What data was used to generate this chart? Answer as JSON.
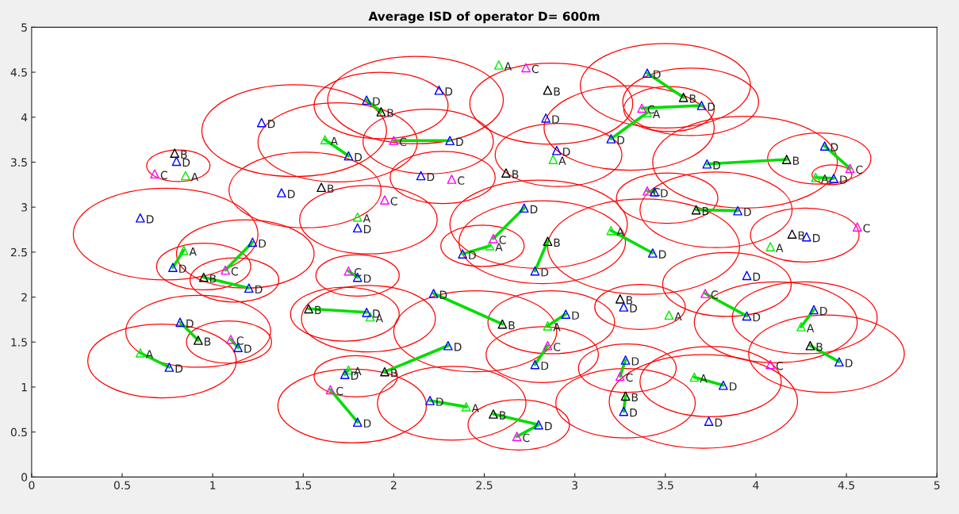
{
  "chart_data": {
    "type": "scatter",
    "title": "Average ISD of operator D= 600m",
    "xlim": [
      0,
      5
    ],
    "ylim": [
      0,
      5
    ],
    "xticks": [
      0,
      0.5,
      1,
      1.5,
      2,
      2.5,
      3,
      3.5,
      4,
      4.5,
      5
    ],
    "yticks": [
      0,
      0.5,
      1,
      1.5,
      2,
      2.5,
      3,
      3.5,
      4,
      4.5,
      5
    ],
    "grid": false,
    "legend": false,
    "marker": "triangle",
    "series": [
      {
        "type": "line",
        "marker": "none",
        "color": "#00dd00",
        "x": [
          1.85,
          1.93
        ],
        "values": [
          4.19,
          4.06
        ]
      },
      {
        "type": "line",
        "marker": "none",
        "color": "#00dd00",
        "x": [
          2.0,
          2.31
        ],
        "values": [
          3.74,
          3.74
        ]
      },
      {
        "type": "line",
        "marker": "none",
        "color": "#00dd00",
        "x": [
          1.62,
          1.75
        ],
        "values": [
          3.75,
          3.57
        ]
      },
      {
        "type": "line",
        "marker": "none",
        "color": "#00dd00",
        "x": [
          3.4,
          3.6
        ],
        "values": [
          4.49,
          4.22
        ]
      },
      {
        "type": "line",
        "marker": "none",
        "color": "#00dd00",
        "x": [
          3.37,
          3.7
        ],
        "values": [
          4.1,
          4.13
        ]
      },
      {
        "type": "line",
        "marker": "none",
        "color": "#00dd00",
        "x": [
          3.4,
          3.2
        ],
        "values": [
          4.05,
          3.76
        ]
      },
      {
        "type": "line",
        "marker": "none",
        "color": "#00dd00",
        "x": [
          3.73,
          4.17
        ],
        "values": [
          3.48,
          3.53
        ]
      },
      {
        "type": "line",
        "marker": "none",
        "color": "#00dd00",
        "x": [
          4.38,
          4.52
        ],
        "values": [
          3.68,
          3.43
        ]
      },
      {
        "type": "line",
        "marker": "none",
        "color": "#00dd00",
        "x": [
          4.33,
          4.43
        ],
        "values": [
          3.33,
          3.32
        ]
      },
      {
        "type": "line",
        "marker": "none",
        "color": "#00dd00",
        "x": [
          3.4,
          3.44
        ],
        "values": [
          3.18,
          3.17
        ]
      },
      {
        "type": "line",
        "marker": "none",
        "color": "#00dd00",
        "x": [
          3.67,
          3.9
        ],
        "values": [
          2.97,
          2.96
        ]
      },
      {
        "type": "line",
        "marker": "none",
        "color": "#00dd00",
        "x": [
          2.72,
          2.55
        ],
        "values": [
          2.99,
          2.65
        ]
      },
      {
        "type": "line",
        "marker": "none",
        "color": "#00dd00",
        "x": [
          2.53,
          2.38
        ],
        "values": [
          2.57,
          2.48
        ]
      },
      {
        "type": "line",
        "marker": "none",
        "color": "#00dd00",
        "x": [
          2.85,
          2.78
        ],
        "values": [
          2.62,
          2.29
        ]
      },
      {
        "type": "line",
        "marker": "none",
        "color": "#00dd00",
        "x": [
          3.2,
          3.43
        ],
        "values": [
          2.74,
          2.49
        ]
      },
      {
        "type": "line",
        "marker": "none",
        "color": "#00dd00",
        "x": [
          0.84,
          0.78
        ],
        "values": [
          2.52,
          2.33
        ]
      },
      {
        "type": "line",
        "marker": "none",
        "color": "#00dd00",
        "x": [
          1.22,
          1.07
        ],
        "values": [
          2.61,
          2.3
        ]
      },
      {
        "type": "line",
        "marker": "none",
        "color": "#00dd00",
        "x": [
          0.95,
          1.2
        ],
        "values": [
          2.22,
          2.1
        ]
      },
      {
        "type": "line",
        "marker": "none",
        "color": "#00dd00",
        "x": [
          1.75,
          1.8
        ],
        "values": [
          2.29,
          2.22
        ]
      },
      {
        "type": "line",
        "marker": "none",
        "color": "#00dd00",
        "x": [
          1.53,
          1.85
        ],
        "values": [
          1.87,
          1.83
        ]
      },
      {
        "type": "line",
        "marker": "none",
        "color": "#00dd00",
        "x": [
          2.22,
          2.6
        ],
        "values": [
          2.04,
          1.7
        ]
      },
      {
        "type": "line",
        "marker": "none",
        "color": "#00dd00",
        "x": [
          2.85,
          2.95
        ],
        "values": [
          1.68,
          1.81
        ]
      },
      {
        "type": "line",
        "marker": "none",
        "color": "#00dd00",
        "x": [
          3.72,
          3.95
        ],
        "values": [
          2.04,
          1.79
        ]
      },
      {
        "type": "line",
        "marker": "none",
        "color": "#00dd00",
        "x": [
          4.25,
          4.32
        ],
        "values": [
          1.67,
          1.86
        ]
      },
      {
        "type": "line",
        "marker": "none",
        "color": "#00dd00",
        "x": [
          0.82,
          0.92
        ],
        "values": [
          1.72,
          1.52
        ]
      },
      {
        "type": "line",
        "marker": "none",
        "color": "#00dd00",
        "x": [
          1.1,
          1.14
        ],
        "values": [
          1.53,
          1.44
        ]
      },
      {
        "type": "line",
        "marker": "none",
        "color": "#00dd00",
        "x": [
          0.6,
          0.76
        ],
        "values": [
          1.38,
          1.22
        ]
      },
      {
        "type": "line",
        "marker": "none",
        "color": "#00dd00",
        "x": [
          1.95,
          2.3
        ],
        "values": [
          1.17,
          1.46
        ]
      },
      {
        "type": "line",
        "marker": "none",
        "color": "#00dd00",
        "x": [
          2.78,
          2.85
        ],
        "values": [
          1.25,
          1.46
        ]
      },
      {
        "type": "line",
        "marker": "none",
        "color": "#00dd00",
        "x": [
          3.28,
          3.25
        ],
        "values": [
          1.3,
          1.12
        ]
      },
      {
        "type": "line",
        "marker": "none",
        "color": "#00dd00",
        "x": [
          4.3,
          4.46
        ],
        "values": [
          1.46,
          1.28
        ]
      },
      {
        "type": "line",
        "marker": "none",
        "color": "#00dd00",
        "x": [
          1.75,
          1.73
        ],
        "values": [
          1.19,
          1.14
        ]
      },
      {
        "type": "line",
        "marker": "none",
        "color": "#00dd00",
        "x": [
          1.65,
          1.8
        ],
        "values": [
          0.97,
          0.61
        ]
      },
      {
        "type": "line",
        "marker": "none",
        "color": "#00dd00",
        "x": [
          2.2,
          2.4
        ],
        "values": [
          0.85,
          0.78
        ]
      },
      {
        "type": "line",
        "marker": "none",
        "color": "#00dd00",
        "x": [
          2.55,
          2.8,
          2.68
        ],
        "values": [
          0.7,
          0.58,
          0.45
        ]
      },
      {
        "type": "line",
        "marker": "none",
        "color": "#00dd00",
        "x": [
          3.66,
          3.82
        ],
        "values": [
          1.11,
          1.02
        ]
      },
      {
        "type": "line",
        "marker": "none",
        "color": "#00dd00",
        "x": [
          3.28,
          3.27
        ],
        "values": [
          0.9,
          0.73
        ]
      },
      {
        "name": "A",
        "color": "#00ee00",
        "x": [
          2.58,
          2.88,
          1.62,
          1.8,
          0.85,
          0.84,
          2.53,
          3.2,
          4.08,
          3.4,
          4.33,
          1.87,
          2.85,
          3.52,
          4.25,
          0.6,
          1.75,
          2.4,
          3.66
        ],
        "values": [
          4.58,
          3.53,
          3.75,
          2.89,
          3.35,
          2.52,
          2.57,
          2.74,
          2.56,
          4.05,
          3.33,
          1.78,
          1.68,
          1.8,
          1.67,
          1.38,
          1.19,
          0.78,
          1.11
        ]
      },
      {
        "name": "B",
        "color": "#000000",
        "x": [
          0.79,
          2.85,
          1.93,
          3.6,
          1.6,
          2.62,
          4.17,
          3.67,
          4.2,
          2.85,
          0.95,
          1.53,
          2.6,
          3.25,
          0.92,
          4.3,
          1.95,
          2.55,
          3.28
        ],
        "values": [
          3.6,
          4.3,
          4.06,
          4.22,
          3.22,
          3.38,
          3.53,
          2.97,
          2.7,
          2.62,
          2.22,
          1.87,
          1.7,
          1.98,
          1.52,
          1.46,
          1.17,
          0.7,
          0.9
        ]
      },
      {
        "name": "C",
        "color": "#ff00ff",
        "x": [
          2.73,
          0.68,
          2.0,
          2.32,
          1.95,
          3.37,
          4.52,
          2.55,
          1.07,
          4.56,
          1.75,
          3.4,
          3.72,
          1.1,
          2.85,
          1.65,
          3.25,
          4.08,
          2.68
        ],
        "values": [
          4.55,
          3.37,
          3.74,
          3.31,
          3.08,
          4.1,
          3.43,
          2.65,
          2.3,
          2.78,
          2.29,
          3.18,
          2.04,
          1.53,
          1.46,
          0.97,
          1.12,
          1.25,
          0.45
        ]
      },
      {
        "name": "D",
        "color": "#0000ff",
        "x": [
          1.27,
          0.8,
          1.85,
          2.25,
          3.4,
          3.7,
          2.84,
          2.31,
          1.75,
          2.9,
          2.15,
          3.2,
          1.38,
          3.73,
          4.38,
          4.43,
          0.6,
          3.44,
          3.9,
          1.8,
          2.72,
          4.28,
          1.22,
          0.78,
          2.38,
          2.78,
          3.43,
          1.2,
          1.8,
          3.95,
          2.22,
          1.85,
          2.95,
          3.27,
          3.95,
          4.32,
          0.82,
          1.14,
          2.3,
          0.76,
          2.78,
          3.28,
          4.46,
          1.73,
          1.8,
          2.2,
          2.8,
          3.82,
          3.27,
          3.74
        ],
        "values": [
          3.94,
          3.51,
          4.19,
          4.3,
          4.49,
          4.13,
          3.99,
          3.74,
          3.57,
          3.63,
          3.35,
          3.76,
          3.16,
          3.48,
          3.68,
          3.32,
          2.88,
          3.17,
          2.96,
          2.77,
          2.99,
          2.67,
          2.61,
          2.33,
          2.48,
          2.29,
          2.49,
          2.1,
          2.22,
          2.24,
          2.04,
          1.83,
          1.81,
          1.89,
          1.79,
          1.86,
          1.72,
          1.44,
          1.46,
          1.22,
          1.25,
          1.3,
          1.28,
          1.14,
          0.61,
          0.85,
          0.58,
          1.02,
          0.73,
          0.62
        ]
      }
    ]
  }
}
